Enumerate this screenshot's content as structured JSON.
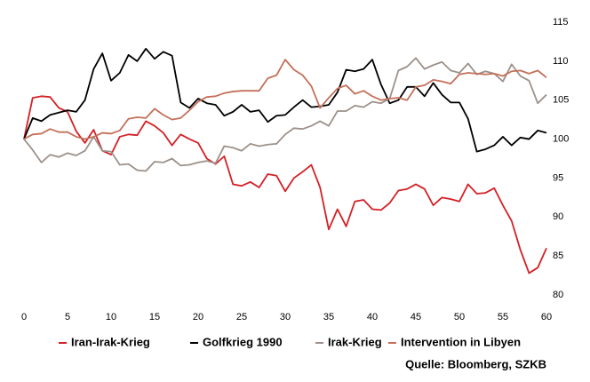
{
  "chart_data": {
    "type": "line",
    "x": [
      0,
      1,
      2,
      3,
      4,
      5,
      6,
      7,
      8,
      9,
      10,
      11,
      12,
      13,
      14,
      15,
      16,
      17,
      18,
      19,
      20,
      21,
      22,
      23,
      24,
      25,
      26,
      27,
      28,
      29,
      30,
      31,
      32,
      33,
      34,
      35,
      36,
      37,
      38,
      39,
      40,
      41,
      42,
      43,
      44,
      45,
      46,
      47,
      48,
      49,
      50,
      51,
      52,
      53,
      54,
      55,
      56,
      57,
      58,
      59,
      60
    ],
    "series": [
      {
        "name": "Iran-Irak-Krieg",
        "color": "#d42026",
        "values": [
          100,
          105.3,
          105.5,
          105.4,
          104,
          103.5,
          101,
          99.5,
          101.2,
          98.5,
          98,
          100.3,
          100.6,
          100.5,
          102.3,
          101.7,
          100.8,
          99.2,
          100.6,
          100,
          99.5,
          97.5,
          96.8,
          97.8,
          94.2,
          94,
          94.5,
          93.8,
          95.5,
          95.3,
          93.3,
          95,
          95.8,
          96.7,
          93.8,
          88.4,
          91,
          88.8,
          92,
          92.2,
          91,
          90.9,
          91.8,
          93.4,
          93.6,
          94.2,
          93.6,
          91.5,
          92.5,
          92.3,
          92,
          94.2,
          93,
          93.1,
          93.7,
          91.5,
          89.5,
          85.8,
          82.8,
          83.5,
          86
        ]
      },
      {
        "name": "Golfkrieg 1990",
        "color": "#000000",
        "values": [
          100,
          102.7,
          102.3,
          103.1,
          103.4,
          103.7,
          103.5,
          105,
          109,
          111,
          107.5,
          108.5,
          110.8,
          110,
          111.6,
          110.3,
          111.2,
          110.7,
          104.7,
          104,
          105.2,
          104.6,
          104.4,
          103,
          103.5,
          104.4,
          103.5,
          103.7,
          102.2,
          103,
          103.1,
          104.1,
          105,
          104.1,
          104.2,
          104.4,
          106,
          108.9,
          108.7,
          109,
          110.2,
          107,
          104.6,
          105,
          106.7,
          106.7,
          105.5,
          107.2,
          105.7,
          104.7,
          104.7,
          102.6,
          98.4,
          98.7,
          99.2,
          100.3,
          99.2,
          100.2,
          100,
          101.1,
          100.8
        ]
      },
      {
        "name": "Irak-Krieg",
        "color": "#9c918a",
        "values": [
          100,
          98.6,
          97,
          98,
          97.7,
          98.2,
          97.9,
          98.5,
          100.3,
          98.5,
          98.4,
          96.7,
          96.8,
          96,
          95.9,
          97.1,
          97,
          97.5,
          96.6,
          96.7,
          97,
          97.2,
          96.9,
          99.1,
          98.9,
          98.5,
          99.4,
          99.1,
          99.3,
          99.4,
          100.6,
          101.4,
          101.3,
          101.7,
          102.3,
          101.7,
          103.6,
          103.6,
          104.3,
          104.1,
          104.8,
          104.6,
          105.2,
          108.8,
          109.3,
          110.4,
          109,
          109.5,
          109.9,
          108.8,
          108.5,
          109.7,
          108.3,
          108.7,
          108.4,
          107.4,
          109.6,
          108.1,
          107.5,
          104.6,
          105.7
        ]
      },
      {
        "name": "Intervention in Libyen",
        "color": "#c4705a",
        "values": [
          100,
          100.6,
          100.7,
          101.3,
          100.9,
          100.9,
          100.3,
          100,
          100.3,
          100.8,
          100.7,
          101.1,
          102.6,
          102.8,
          102.7,
          103.9,
          103.1,
          102.5,
          102.7,
          103.7,
          104.8,
          105.4,
          105.5,
          105.9,
          106.1,
          106.2,
          106.2,
          106.2,
          107.8,
          108.2,
          110.2,
          108.9,
          108.2,
          106.8,
          104,
          105.3,
          106.5,
          106.9,
          105.8,
          106.2,
          105.5,
          105,
          105.2,
          105.3,
          105,
          106.7,
          106.9,
          107.6,
          107.4,
          107.1,
          108.3,
          108.5,
          108.4,
          108.3,
          108.4,
          108.1,
          108.7,
          108.8,
          108.4,
          108.8,
          107.9
        ]
      }
    ],
    "xlim": [
      0,
      60
    ],
    "xticks": [
      0,
      5,
      10,
      15,
      20,
      25,
      30,
      35,
      40,
      45,
      50,
      55,
      60
    ],
    "ylim": [
      80,
      115
    ],
    "yticks": [
      80,
      85,
      90,
      95,
      100,
      105,
      110,
      115
    ],
    "source": "Quelle: Bloomberg, SZKB"
  }
}
